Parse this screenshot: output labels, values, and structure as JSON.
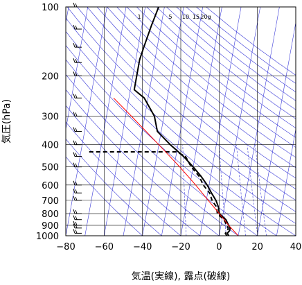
{
  "chart_data": {
    "type": "line",
    "diagram": "skew-T log-P",
    "xlabel": "気温(実線), 露点(破線)",
    "ylabel": "気圧(hPa)",
    "xlim": [
      -80,
      40
    ],
    "ylim": [
      1000,
      100
    ],
    "y_scale": "log",
    "x_ticks": [
      "−80",
      "−60",
      "−40",
      "−20",
      "0",
      "20",
      "40"
    ],
    "y_ticks": [
      "100",
      "200",
      "300",
      "400",
      "500",
      "600",
      "700",
      "800",
      "900",
      "1000"
    ],
    "mixing_ratio_labels": [
      "1",
      "5",
      "10",
      "15",
      "20g"
    ],
    "series": [
      {
        "role": "temperature",
        "style": "solid",
        "color": "#000000",
        "points": [
          {
            "p": 1000,
            "t": 5
          },
          {
            "p": 975,
            "t": 4
          },
          {
            "p": 950,
            "t": 5
          },
          {
            "p": 925,
            "t": 5
          },
          {
            "p": 900,
            "t": 4
          },
          {
            "p": 850,
            "t": 2
          },
          {
            "p": 800,
            "t": -2
          },
          {
            "p": 750,
            "t": -3
          },
          {
            "p": 700,
            "t": -5
          },
          {
            "p": 650,
            "t": -8
          },
          {
            "p": 600,
            "t": -11
          },
          {
            "p": 550,
            "t": -15
          },
          {
            "p": 500,
            "t": -20
          },
          {
            "p": 450,
            "t": -26
          },
          {
            "p": 400,
            "t": -34
          },
          {
            "p": 350,
            "t": -42
          },
          {
            "p": 300,
            "t": -45
          },
          {
            "p": 250,
            "t": -52
          },
          {
            "p": 230,
            "t": -58
          },
          {
            "p": 200,
            "t": -58
          },
          {
            "p": 170,
            "t": -58
          },
          {
            "p": 150,
            "t": -57
          },
          {
            "p": 120,
            "t": -55
          },
          {
            "p": 100,
            "t": -53
          }
        ]
      },
      {
        "role": "dewpoint",
        "style": "dashed",
        "color": "#000000",
        "points": [
          {
            "p": 1000,
            "t": 4
          },
          {
            "p": 975,
            "t": 3
          },
          {
            "p": 950,
            "t": 4
          },
          {
            "p": 925,
            "t": 4
          },
          {
            "p": 900,
            "t": 3
          },
          {
            "p": 850,
            "t": 1
          },
          {
            "p": 800,
            "t": -3
          },
          {
            "p": 750,
            "t": -4
          },
          {
            "p": 700,
            "t": -7
          },
          {
            "p": 650,
            "t": -9
          },
          {
            "p": 600,
            "t": -13
          },
          {
            "p": 550,
            "t": -16
          },
          {
            "p": 500,
            "t": -21
          },
          {
            "p": 450,
            "t": -25
          },
          {
            "p": 430,
            "t": -30
          },
          {
            "p": 430,
            "t": -76
          }
        ]
      },
      {
        "role": "parcel",
        "style": "solid",
        "color": "#ff0000",
        "points": [
          {
            "p": 1000,
            "t": 10
          },
          {
            "p": 900,
            "t": 4
          },
          {
            "p": 800,
            "t": -2
          },
          {
            "p": 700,
            "t": -9
          },
          {
            "p": 600,
            "t": -17
          },
          {
            "p": 500,
            "t": -27
          },
          {
            "p": 400,
            "t": -40
          },
          {
            "p": 300,
            "t": -57
          },
          {
            "p": 250,
            "t": -68
          }
        ]
      }
    ],
    "colors": {
      "grid": "#000000",
      "background_lines": "#0000cc",
      "frame": "#000000"
    },
    "wind_barbs": [
      {
        "p": 975
      },
      {
        "p": 925
      },
      {
        "p": 900
      },
      {
        "p": 850
      },
      {
        "p": 800
      },
      {
        "p": 700
      },
      {
        "p": 650
      },
      {
        "p": 600
      },
      {
        "p": 500
      },
      {
        "p": 450
      },
      {
        "p": 400
      },
      {
        "p": 350
      },
      {
        "p": 300
      },
      {
        "p": 250
      },
      {
        "p": 200
      },
      {
        "p": 175
      },
      {
        "p": 150
      },
      {
        "p": 125
      },
      {
        "p": 100
      }
    ]
  }
}
